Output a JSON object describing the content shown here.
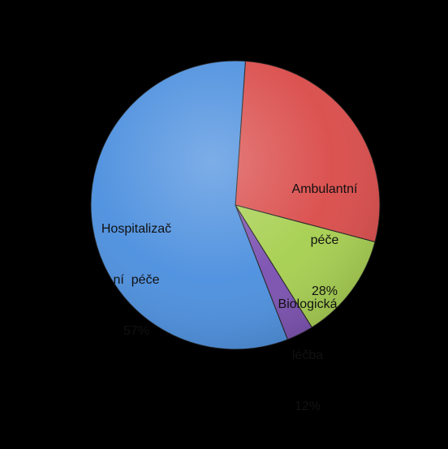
{
  "chart_data": {
    "type": "pie",
    "slices": [
      {
        "key": "ambulantni",
        "label_lines": [
          "Ambulantní",
          "péče"
        ],
        "value_label": "28%",
        "value": 28,
        "color": "#d94a48"
      },
      {
        "key": "biologicka",
        "label_lines": [
          "Biologická",
          "léčba"
        ],
        "value_label": "12%",
        "value": 12,
        "color": "#a6cf4e"
      },
      {
        "key": "unlabeled",
        "label_lines": [],
        "value_label": "",
        "value": 3,
        "color": "#7a4fb0"
      },
      {
        "key": "hospitalizace",
        "label_lines": [
          "Hospitalizač",
          "ní  péče"
        ],
        "value_label": "57%",
        "value": 57,
        "color": "#4a8ede"
      }
    ],
    "start_angle_deg": 4,
    "direction": "clockwise",
    "background": "#000000",
    "legend": "none"
  }
}
